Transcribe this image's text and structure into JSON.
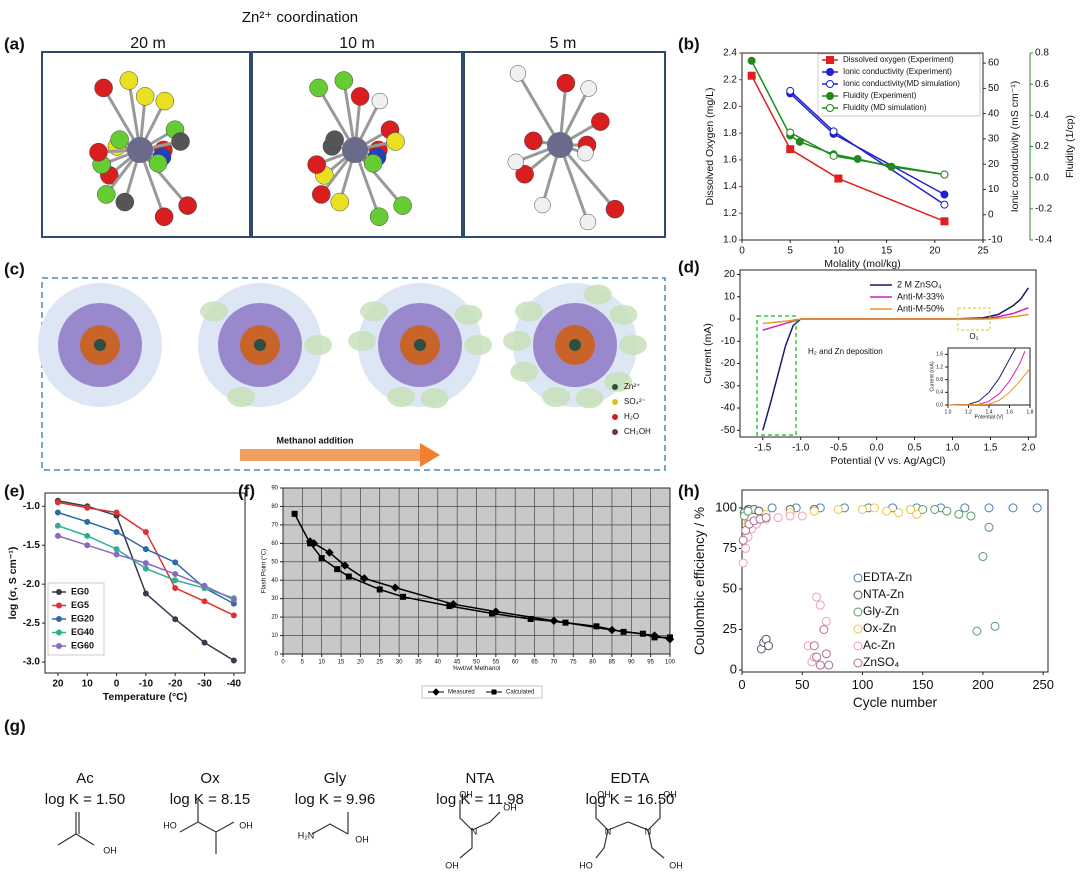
{
  "panel_labels": [
    "(a)",
    "(b)",
    "(c)",
    "(d)",
    "(e)",
    "(f)",
    "(g)",
    "(h)"
  ],
  "panel_a": {
    "title": "Zn²⁺ coordination",
    "labels": [
      "20 m",
      "10 m",
      "5 m"
    ]
  },
  "panel_c": {
    "arrow_label": "Methanol addition",
    "legend": [
      "Zn²⁺",
      "SO₄²⁻",
      "H₂O",
      "CH₃OH"
    ]
  },
  "panel_g": {
    "ligands": [
      {
        "name": "Ac",
        "log_k": "log K = 1.50",
        "atoms": [
          "OH"
        ]
      },
      {
        "name": "Ox",
        "log_k": "log K = 8.15",
        "atoms": [
          "HO",
          "OH"
        ]
      },
      {
        "name": "Gly",
        "log_k": "log K = 9.96",
        "atoms": [
          "H₂N",
          "OH"
        ]
      },
      {
        "name": "NTA",
        "log_k": "log K = 11.98",
        "atoms": [
          "OH",
          "N",
          "OH",
          "OH"
        ]
      },
      {
        "name": "EDTA",
        "log_k": "log K = 16.50",
        "atoms": [
          "OH",
          "OH",
          "N",
          "N",
          "HO",
          "OH"
        ]
      }
    ]
  },
  "chart_data": [
    {
      "type": "line",
      "x_label": "Molality (mol/kg)",
      "y_label": "Dissolved Oxygen (mg/L)",
      "y2_label": "Ionic conductivity (mS cm⁻¹)",
      "y3_label": "Fluidity (1/cp)",
      "y_color": "#d02020",
      "y2_color": "#2020b0",
      "y3_color": "#2a8a2a",
      "xlim": [
        0,
        25
      ],
      "xticks": [
        0,
        5,
        10,
        15,
        20,
        25
      ],
      "ylim": [
        1.0,
        2.4
      ],
      "yticks": [
        {
          "value": 1.0,
          "label": "1.0"
        },
        1.2,
        1.4,
        1.6,
        1.8,
        {
          "value": 2.0,
          "label": "2.0"
        },
        2.2,
        2.4
      ],
      "y2lim": [
        -10,
        64
      ],
      "y2ticks": [
        -10,
        0,
        10,
        20,
        30,
        40,
        50,
        60
      ],
      "y3lim": [
        -0.4,
        0.8
      ],
      "y3ticks": [
        -0.4,
        -0.2,
        {
          "value": 0,
          "label": "0.0"
        },
        0.2,
        0.4,
        0.6,
        0.8
      ],
      "series": [
        {
          "name": "Dissolved oxygen (Experiment)",
          "color": "#e02020",
          "marker": "square",
          "filled": true,
          "x": [
            1,
            5,
            10,
            21
          ],
          "values": [
            2.23,
            1.68,
            1.46,
            1.14
          ]
        },
        {
          "name": "Ionic conductivity (Experiment)",
          "color": "#2020d0",
          "marker": "circle",
          "filled": true,
          "axis": "y2",
          "x": [
            5,
            9.5,
            21
          ],
          "values": [
            48,
            32,
            8
          ]
        },
        {
          "name": "Ionic conductivity(MD simulation)",
          "color": "#2020d0",
          "marker": "circle",
          "filled": false,
          "axis": "y2",
          "x": [
            5,
            9.5,
            21
          ],
          "values": [
            49,
            33,
            4
          ]
        },
        {
          "name": "Fluidity (Experiment)",
          "color": "#1f8a1f",
          "marker": "circle",
          "filled": true,
          "axis": "y3",
          "x": [
            1,
            5,
            6,
            9.5,
            12,
            15.5,
            21
          ],
          "values": [
            0.75,
            0.27,
            0.23,
            0.15,
            0.12,
            0.07,
            0.02
          ]
        },
        {
          "name": "Fluidity (MD simulation)",
          "color": "#1f8a1f",
          "marker": "circle",
          "filled": false,
          "axis": "y3",
          "x": [
            5,
            9.5,
            21
          ],
          "values": [
            0.29,
            0.14,
            0.02
          ]
        }
      ]
    },
    {
      "type": "line",
      "x_label": "Potential (V vs. Ag/AgCl)",
      "y_label": "Current (mA)",
      "annotations": [
        "H₂ and Zn deposition",
        "O₂"
      ],
      "xlim": [
        -1.8,
        2.1
      ],
      "xticks": [
        -1.5,
        {
          "value": -1.0,
          "label": "-1.0"
        },
        -0.5,
        {
          "value": 0,
          "label": "0.0"
        },
        0.5,
        {
          "value": 1.0,
          "label": "1.0"
        },
        1.5,
        {
          "value": 2.0,
          "label": "2.0"
        }
      ],
      "ylim": [
        -53,
        22
      ],
      "yticks": [
        -50,
        -40,
        -30,
        -20,
        -10,
        0,
        10,
        20
      ],
      "series": [
        {
          "name": "2 M ZnSO₄",
          "color": "#1a1a6e",
          "x": [
            -1.5,
            -1.4,
            -1.3,
            -1.2,
            -1.1,
            -1.0,
            0,
            1.0,
            1.4,
            1.6,
            1.8,
            1.9,
            2.0
          ],
          "values": [
            -50,
            -38,
            -25,
            -12,
            -3,
            0,
            0,
            0,
            0.5,
            2,
            6,
            9,
            14
          ]
        },
        {
          "name": "Anti-M-33%",
          "color": "#d020c0",
          "x": [
            -1.5,
            -1.3,
            -1.1,
            -1.0,
            0,
            1.4,
            1.6,
            1.8,
            2.0
          ],
          "values": [
            -5,
            -3,
            -1,
            0,
            0,
            0,
            1,
            2.5,
            5
          ]
        },
        {
          "name": "Anti-M-50%",
          "color": "#e89a20",
          "x": [
            -1.5,
            -1.2,
            -1.0,
            0,
            1.5,
            1.8,
            2.0
          ],
          "values": [
            -2,
            -1,
            0,
            0,
            0,
            1,
            2
          ]
        }
      ]
    },
    {
      "type": "line",
      "x_label": "Potential (V)",
      "y_label": "Current (mA)",
      "xlim": [
        1.0,
        1.8
      ],
      "xticks": [
        {
          "value": 1.0,
          "label": "1.0"
        },
        1.2,
        1.4,
        1.6,
        1.8
      ],
      "ylim": [
        0,
        1.8
      ],
      "yticks": [
        {
          "value": 0,
          "label": "0.0"
        },
        0.4,
        0.8,
        1.2,
        1.6
      ],
      "series": [
        {
          "color": "#1a1a6e",
          "x": [
            1.0,
            1.2,
            1.3,
            1.4,
            1.5,
            1.6,
            1.66
          ],
          "values": [
            0,
            0.02,
            0.12,
            0.4,
            0.85,
            1.45,
            1.8
          ]
        },
        {
          "color": "#d020c0",
          "x": [
            1.0,
            1.3,
            1.4,
            1.5,
            1.6,
            1.7,
            1.75
          ],
          "values": [
            0,
            0.02,
            0.12,
            0.35,
            0.75,
            1.3,
            1.7
          ]
        },
        {
          "color": "#e89a20",
          "x": [
            1.0,
            1.4,
            1.5,
            1.6,
            1.7,
            1.8
          ],
          "values": [
            0,
            0.02,
            0.15,
            0.4,
            0.75,
            1.15
          ]
        }
      ]
    },
    {
      "type": "line",
      "x_label": "Temperature (°C)",
      "y_label": "log (σ, S cm⁻¹)",
      "markers": true,
      "x": [
        20,
        10,
        0,
        -10,
        -20,
        -30,
        -40
      ],
      "xlim": [
        24.4,
        -43.8
      ],
      "xticks": [
        20,
        10,
        0,
        -10,
        -20,
        -30,
        -40
      ],
      "ylim": [
        -3.14,
        -0.83
      ],
      "yticks": [
        {
          "value": -3.0,
          "label": "-3.0"
        },
        -2.5,
        {
          "value": -2.0,
          "label": "-2.0"
        },
        -1.5,
        {
          "value": -1.0,
          "label": "-1.0"
        }
      ],
      "series": [
        {
          "name": "EG0",
          "color": "#3a3a4a",
          "marker": "circle",
          "values": [
            -0.93,
            -1.0,
            -1.12,
            -2.12,
            -2.45,
            -2.75,
            -2.98
          ]
        },
        {
          "name": "EG5",
          "color": "#e03030",
          "marker": "circle",
          "values": [
            -0.95,
            -1.02,
            -1.08,
            -1.33,
            -2.05,
            -2.22,
            -2.4
          ]
        },
        {
          "name": "EG20",
          "color": "#2a6aa8",
          "marker": "circle",
          "values": [
            -1.08,
            -1.2,
            -1.33,
            -1.55,
            -1.72,
            -2.05,
            -2.25
          ]
        },
        {
          "name": "EG40",
          "color": "#30b090",
          "marker": "circle",
          "values": [
            -1.25,
            -1.38,
            -1.55,
            -1.8,
            -1.95,
            -2.05,
            -2.18
          ]
        },
        {
          "name": "EG60",
          "color": "#8a6ac0",
          "marker": "circle",
          "values": [
            -1.38,
            -1.5,
            -1.62,
            -1.73,
            -1.87,
            -2.02,
            -2.2
          ]
        }
      ]
    },
    {
      "type": "line",
      "x_label": "%wt/wt Methanol",
      "y_label": "Flash Point (°C)",
      "markers": true,
      "grid": true,
      "xlim": [
        0,
        100
      ],
      "xticks": [
        0,
        5,
        10,
        15,
        20,
        25,
        30,
        35,
        40,
        45,
        50,
        55,
        60,
        65,
        70,
        75,
        80,
        85,
        90,
        95,
        100
      ],
      "ylim": [
        0,
        90
      ],
      "yticks": [
        0,
        10,
        20,
        30,
        40,
        50,
        60,
        70,
        80,
        90
      ],
      "series": [
        {
          "name": "Measured",
          "color": "#000000",
          "marker": "diamond",
          "x": [
            7,
            8,
            12,
            16,
            21,
            29,
            44,
            55,
            70,
            85,
            96,
            100
          ],
          "values": [
            61,
            60,
            55,
            48,
            41,
            36,
            27,
            23,
            18,
            13,
            10,
            8
          ]
        },
        {
          "name": "Calculated",
          "color": "#000000",
          "marker": "square",
          "x": [
            3,
            7,
            10,
            14,
            17,
            25,
            31,
            43,
            54,
            64,
            73,
            81,
            88,
            93,
            96,
            100
          ],
          "values": [
            76,
            60,
            52,
            46,
            42,
            35,
            31,
            26,
            22,
            19,
            17,
            15,
            12,
            11,
            9,
            9
          ]
        }
      ]
    },
    {
      "type": "scatter",
      "x_label": "Cycle number",
      "y_label": "Coulombic efficiency / %",
      "xlim": [
        0,
        254
      ],
      "xticks": [
        0,
        50,
        100,
        150,
        200,
        250
      ],
      "ylim": [
        -1.2,
        111
      ],
      "yticks": [
        0,
        25,
        50,
        75,
        100
      ],
      "series": [
        {
          "name": "EDTA-Zn",
          "color": "#4a7fb5",
          "x": [
            5,
            25,
            45,
            65,
            85,
            105,
            125,
            145,
            165,
            185,
            205,
            225,
            245
          ],
          "values": [
            99,
            100,
            100,
            100,
            100,
            100,
            100,
            100,
            100,
            100,
            100,
            100,
            100
          ]
        },
        {
          "name": "NTA-Zn",
          "color": "#555566",
          "x": [
            2,
            6,
            10,
            14,
            16,
            18,
            20,
            22,
            40,
            60
          ],
          "values": [
            97,
            99,
            99,
            98,
            13,
            17,
            19,
            15,
            99,
            99
          ]
        },
        {
          "name": "Gly-Zn",
          "color": "#5a9a6a",
          "x": [
            2,
            5,
            140,
            150,
            160,
            170,
            180,
            190,
            195,
            200,
            205,
            210
          ],
          "values": [
            95,
            98,
            99,
            99,
            99,
            98,
            96,
            95,
            24,
            70,
            88,
            27
          ]
        },
        {
          "name": "Ox-Zn",
          "color": "#e8c84a",
          "x": [
            5,
            20,
            40,
            60,
            80,
            100,
            110,
            120,
            130,
            140,
            145
          ],
          "values": [
            90,
            96,
            97,
            98,
            99,
            99,
            100,
            98,
            97,
            99,
            96
          ]
        },
        {
          "name": "Ac-Zn",
          "color": "#f0a0b0",
          "x": [
            1,
            3,
            5,
            8,
            12,
            20,
            30,
            40,
            50,
            55,
            58,
            60,
            62,
            65,
            70
          ],
          "values": [
            66,
            75,
            82,
            87,
            90,
            93,
            94,
            95,
            95,
            15,
            5,
            8,
            45,
            40,
            30
          ]
        },
        {
          "name": "ZnSO₄",
          "color": "#b07090",
          "x": [
            1,
            3,
            6,
            10,
            15,
            20,
            60,
            62,
            65,
            68,
            70,
            72
          ],
          "values": [
            80,
            86,
            90,
            92,
            93,
            94,
            15,
            8,
            3,
            25,
            10,
            3
          ]
        }
      ]
    }
  ]
}
